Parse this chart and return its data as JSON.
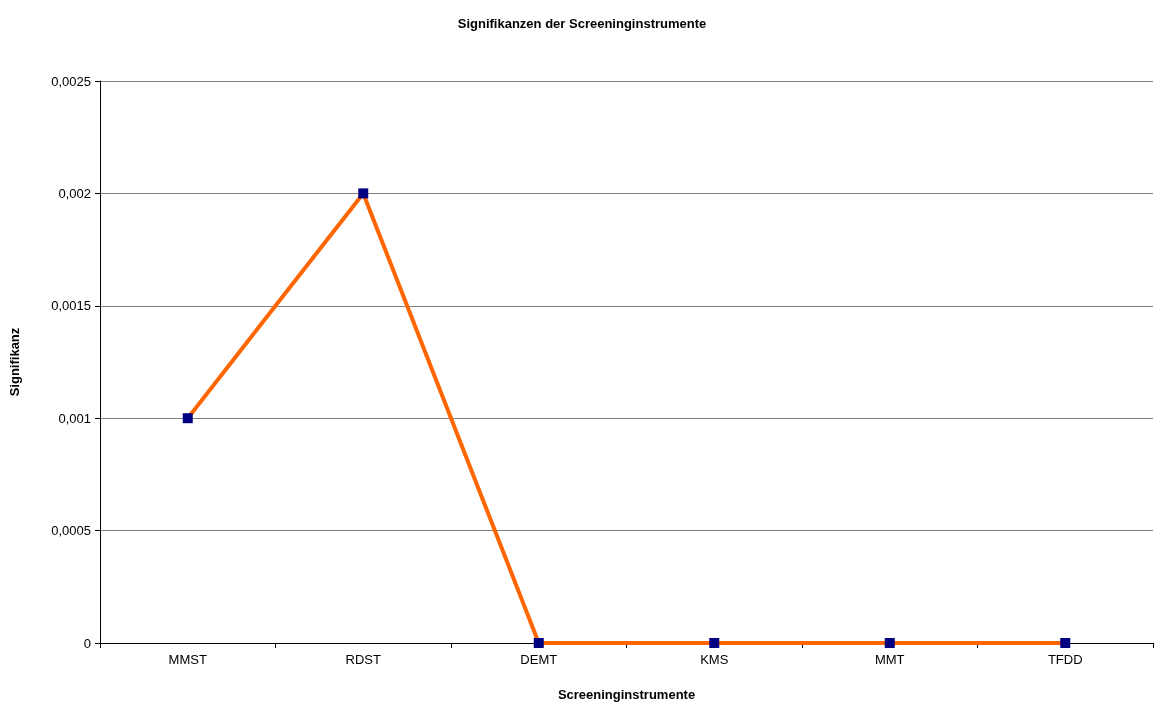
{
  "chart_data": {
    "type": "line",
    "title": "Signifikanzen der Screeninginstrumente",
    "xlabel": "Screeninginstrumente",
    "ylabel": "Signifikanz",
    "categories": [
      "MMST",
      "RDST",
      "DEMT",
      "KMS",
      "MMT",
      "TFDD"
    ],
    "series": [
      {
        "color": "#ff6600",
        "colors": [
          "#000080",
          "#000080",
          "#000080",
          "#000080",
          "#000080",
          "#000080"
        ],
        "values": [
          0.001,
          0.002,
          0,
          0,
          0,
          0
        ]
      }
    ],
    "ylim": [
      0,
      0.0025
    ],
    "yticks": [
      {
        "value": 0,
        "label": "0"
      },
      {
        "value": 0.0005,
        "label": "0,0005"
      },
      {
        "value": 0.001,
        "label": "0,001"
      },
      {
        "value": 0.0015,
        "label": "0,0015"
      },
      {
        "value": 0.002,
        "label": "0,002"
      },
      {
        "value": 0.0025,
        "label": "0,0025"
      }
    ],
    "grid": "y",
    "marker": "square",
    "line_style": "solid"
  }
}
